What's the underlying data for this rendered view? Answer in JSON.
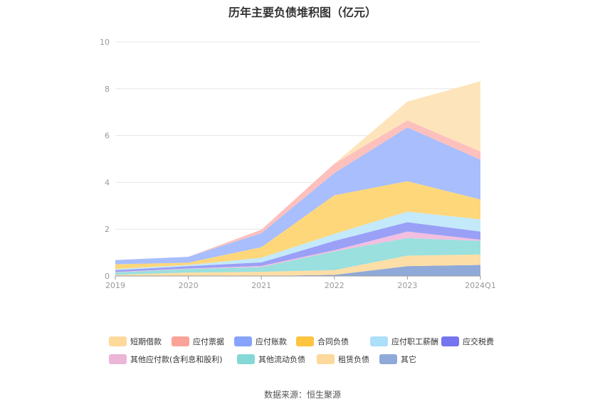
{
  "chart_data": {
    "type": "area",
    "stacked": true,
    "title": "历年主要负债堆积图（亿元）",
    "x": [
      "2019",
      "2020",
      "2021",
      "2022",
      "2023",
      "2024Q1"
    ],
    "ylim": [
      0,
      10
    ],
    "yticks": [
      0,
      2,
      4,
      6,
      8,
      10
    ],
    "grid": true,
    "legend_position": "bottom",
    "series": [
      {
        "name": "其它",
        "color": "#8fa9d8",
        "values": [
          0.0,
          0.0,
          0.0,
          0.05,
          0.42,
          0.47
        ]
      },
      {
        "name": "租赁负债",
        "color": "#fddea6",
        "values": [
          0.05,
          0.15,
          0.18,
          0.2,
          0.45,
          0.45
        ]
      },
      {
        "name": "其他流动负债",
        "color": "#99e0de",
        "values": [
          0.1,
          0.15,
          0.2,
          0.8,
          0.75,
          0.58
        ]
      },
      {
        "name": "其他应付款(含利息和股利)",
        "color": "#f1bfe0",
        "values": [
          0.02,
          0.02,
          0.05,
          0.05,
          0.28,
          0.05
        ]
      },
      {
        "name": "应交税费",
        "color": "#9aa0f6",
        "values": [
          0.08,
          0.1,
          0.15,
          0.4,
          0.4,
          0.35
        ]
      },
      {
        "name": "应付职工薪酬",
        "color": "#c3e9fa",
        "values": [
          0.05,
          0.05,
          0.2,
          0.3,
          0.45,
          0.52
        ]
      },
      {
        "name": "合同负债",
        "color": "#fed77a",
        "values": [
          0.2,
          0.1,
          0.45,
          1.65,
          1.3,
          0.85
        ]
      },
      {
        "name": "应付账款",
        "color": "#a8befd",
        "values": [
          0.18,
          0.25,
          0.6,
          0.95,
          2.3,
          1.7
        ]
      },
      {
        "name": "应付票据",
        "color": "#fdc0bd",
        "values": [
          0.0,
          0.0,
          0.15,
          0.4,
          0.3,
          0.35
        ]
      },
      {
        "name": "短期借款",
        "color": "#fee4ba",
        "values": [
          0.0,
          0.0,
          0.0,
          0.0,
          0.8,
          3.0
        ]
      }
    ]
  },
  "legend": [
    {
      "name": "短期借款",
      "color": "#fdd99b"
    },
    {
      "name": "应付票据",
      "color": "#fba399"
    },
    {
      "name": "应付账款",
      "color": "#86a4fb"
    },
    {
      "name": "合同负债",
      "color": "#fec43f"
    },
    {
      "name": "应付职工薪酬",
      "color": "#acdffa"
    },
    {
      "name": "应交税费",
      "color": "#7575ef"
    },
    {
      "name": "其他应付款(含利息和股利)",
      "color": "#ebb6d8"
    },
    {
      "name": "其他流动负债",
      "color": "#84d8d6"
    },
    {
      "name": "租赁负债",
      "color": "#fdd99b"
    },
    {
      "name": "其它",
      "color": "#8fa9d8"
    }
  ],
  "source_text": "数据来源：恒生聚源"
}
